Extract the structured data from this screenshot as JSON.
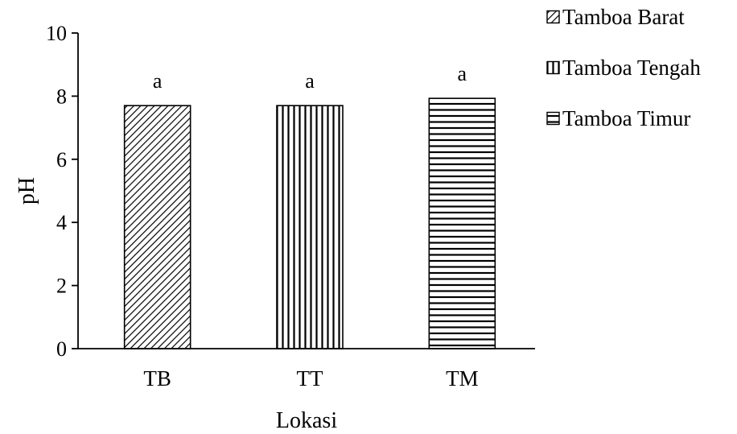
{
  "chart_data": {
    "type": "bar",
    "title": "",
    "xlabel": "Lokasi",
    "ylabel": "pH",
    "ylim": [
      0,
      10
    ],
    "yticks": [
      0,
      2,
      4,
      6,
      8,
      10
    ],
    "categories": [
      "TB",
      "TT",
      "TM"
    ],
    "values": [
      7.7,
      7.7,
      7.93
    ],
    "data_labels": [
      "a",
      "a",
      "a"
    ],
    "patterns": [
      "diagonal",
      "vertical",
      "horizontal"
    ],
    "legend": {
      "position": "top-right",
      "entries": [
        "Tamboa Barat",
        "Tamboa Tengah",
        "Tamboa Timur"
      ]
    },
    "grid": false,
    "colors": {
      "bar_fill": "#ffffff",
      "stroke": "#000000"
    }
  }
}
